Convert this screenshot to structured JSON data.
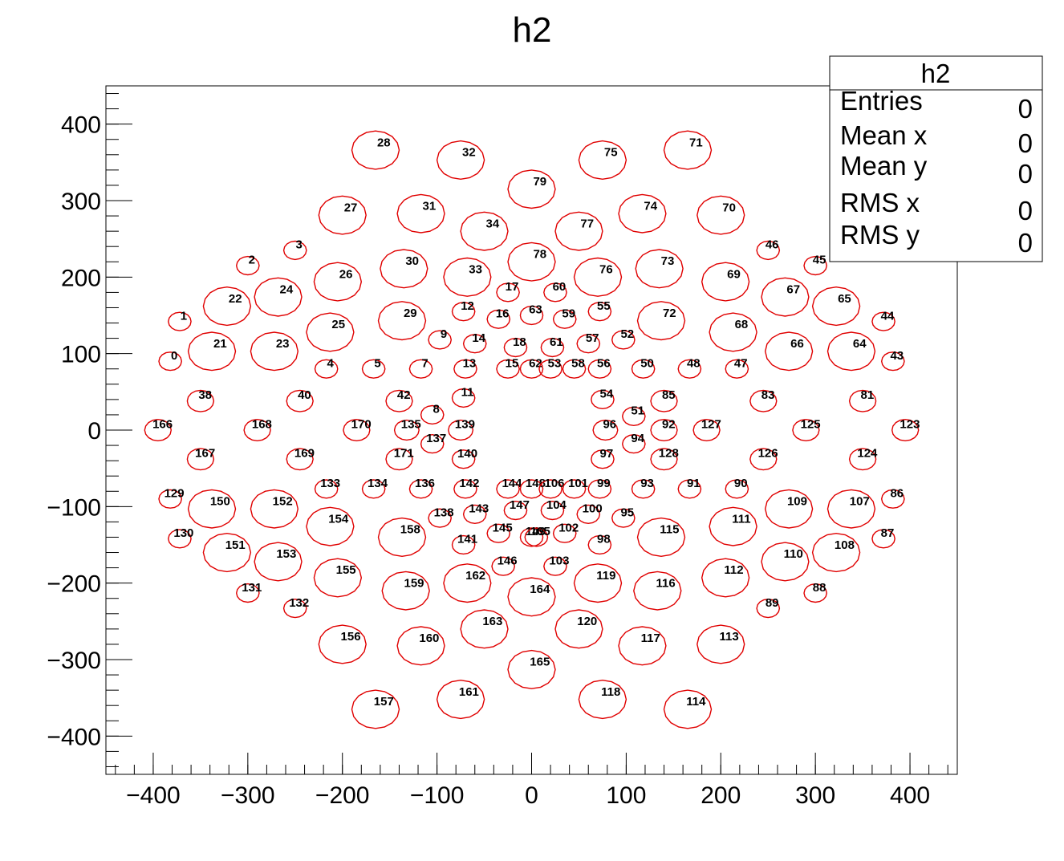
{
  "chart_data": {
    "type": "scatter",
    "title": "h2",
    "xlabel": "",
    "ylabel": "",
    "xlim": [
      -450,
      450
    ],
    "ylim": [
      -450,
      450
    ],
    "x_ticks": [
      -400,
      -300,
      -200,
      -100,
      0,
      100,
      200,
      300,
      400
    ],
    "y_ticks": [
      -400,
      -300,
      -200,
      -100,
      0,
      100,
      200,
      300,
      400
    ],
    "tick_labels": {
      "-400": "−400",
      "-300": "−300",
      "-200": "−200",
      "-100": "−100",
      "0": "0",
      "100": "100",
      "200": "200",
      "300": "300",
      "400": "400"
    },
    "bin_color": "#e00000",
    "bins": [
      {
        "id": "0",
        "x": -382,
        "y": 90,
        "r": 12
      },
      {
        "id": "1",
        "x": -372,
        "y": 142,
        "r": 12
      },
      {
        "id": "2",
        "x": -300,
        "y": 215,
        "r": 12
      },
      {
        "id": "3",
        "x": -250,
        "y": 235,
        "r": 12
      },
      {
        "id": "5",
        "x": -167,
        "y": 80,
        "r": 12
      },
      {
        "id": "4",
        "x": -217,
        "y": 80,
        "r": 12
      },
      {
        "id": "7",
        "x": -117,
        "y": 80,
        "r": 12
      },
      {
        "id": "13",
        "x": -70,
        "y": 80,
        "r": 12
      },
      {
        "id": "15",
        "x": -25,
        "y": 80,
        "r": 12
      },
      {
        "id": "62",
        "x": 0,
        "y": 80,
        "r": 12
      },
      {
        "id": "53",
        "x": 20,
        "y": 80,
        "r": 12
      },
      {
        "id": "58",
        "x": 45,
        "y": 80,
        "r": 12
      },
      {
        "id": "56",
        "x": 72,
        "y": 80,
        "r": 12
      },
      {
        "id": "50",
        "x": 118,
        "y": 80,
        "r": 12
      },
      {
        "id": "48",
        "x": 167,
        "y": 80,
        "r": 12
      },
      {
        "id": "47",
        "x": 217,
        "y": 80,
        "r": 12
      },
      {
        "id": "9",
        "x": -97,
        "y": 118,
        "r": 12
      },
      {
        "id": "14",
        "x": -60,
        "y": 113,
        "r": 12
      },
      {
        "id": "18",
        "x": -17,
        "y": 108,
        "r": 12
      },
      {
        "id": "61",
        "x": 22,
        "y": 108,
        "r": 12
      },
      {
        "id": "57",
        "x": 60,
        "y": 113,
        "r": 12
      },
      {
        "id": "52",
        "x": 97,
        "y": 118,
        "r": 12
      },
      {
        "id": "12",
        "x": -72,
        "y": 155,
        "r": 12
      },
      {
        "id": "16",
        "x": -35,
        "y": 145,
        "r": 12
      },
      {
        "id": "63",
        "x": 0,
        "y": 150,
        "r": 12
      },
      {
        "id": "59",
        "x": 35,
        "y": 145,
        "r": 12
      },
      {
        "id": "55",
        "x": 72,
        "y": 155,
        "r": 12
      },
      {
        "id": "17",
        "x": -25,
        "y": 180,
        "r": 12
      },
      {
        "id": "60",
        "x": 25,
        "y": 180,
        "r": 12
      },
      {
        "id": "46",
        "x": 250,
        "y": 235,
        "r": 12
      },
      {
        "id": "45",
        "x": 300,
        "y": 215,
        "r": 12
      },
      {
        "id": "44",
        "x": 372,
        "y": 142,
        "r": 12
      },
      {
        "id": "43",
        "x": 382,
        "y": 90,
        "r": 12
      },
      {
        "id": "21",
        "x": -338,
        "y": 103,
        "r": 25
      },
      {
        "id": "22",
        "x": -322,
        "y": 162,
        "r": 25
      },
      {
        "id": "23",
        "x": -272,
        "y": 103,
        "r": 25
      },
      {
        "id": "24",
        "x": -268,
        "y": 174,
        "r": 25
      },
      {
        "id": "25",
        "x": -213,
        "y": 128,
        "r": 25
      },
      {
        "id": "26",
        "x": -205,
        "y": 194,
        "r": 25
      },
      {
        "id": "27",
        "x": -200,
        "y": 281,
        "r": 25
      },
      {
        "id": "28",
        "x": -165,
        "y": 366,
        "r": 25
      },
      {
        "id": "29",
        "x": -137,
        "y": 143,
        "r": 25
      },
      {
        "id": "30",
        "x": -135,
        "y": 211,
        "r": 25
      },
      {
        "id": "31",
        "x": -117,
        "y": 283,
        "r": 25
      },
      {
        "id": "32",
        "x": -75,
        "y": 353,
        "r": 25
      },
      {
        "id": "33",
        "x": -68,
        "y": 200,
        "r": 25
      },
      {
        "id": "34",
        "x": -50,
        "y": 260,
        "r": 25
      },
      {
        "id": "79",
        "x": 0,
        "y": 315,
        "r": 25
      },
      {
        "id": "78",
        "x": 0,
        "y": 220,
        "r": 25
      },
      {
        "id": "77",
        "x": 50,
        "y": 260,
        "r": 25
      },
      {
        "id": "76",
        "x": 70,
        "y": 200,
        "r": 25
      },
      {
        "id": "75",
        "x": 75,
        "y": 353,
        "r": 25
      },
      {
        "id": "74",
        "x": 117,
        "y": 283,
        "r": 25
      },
      {
        "id": "73",
        "x": 135,
        "y": 211,
        "r": 25
      },
      {
        "id": "72",
        "x": 137,
        "y": 143,
        "r": 25
      },
      {
        "id": "71",
        "x": 165,
        "y": 366,
        "r": 25
      },
      {
        "id": "70",
        "x": 200,
        "y": 281,
        "r": 25
      },
      {
        "id": "69",
        "x": 205,
        "y": 194,
        "r": 25
      },
      {
        "id": "68",
        "x": 213,
        "y": 128,
        "r": 25
      },
      {
        "id": "67",
        "x": 268,
        "y": 174,
        "r": 25
      },
      {
        "id": "66",
        "x": 272,
        "y": 103,
        "r": 25
      },
      {
        "id": "65",
        "x": 322,
        "y": 162,
        "r": 25
      },
      {
        "id": "64",
        "x": 338,
        "y": 103,
        "r": 25
      },
      {
        "id": "38",
        "x": -350,
        "y": 38,
        "r": 14
      },
      {
        "id": "40",
        "x": -245,
        "y": 38,
        "r": 14
      },
      {
        "id": "42",
        "x": -140,
        "y": 38,
        "r": 14
      },
      {
        "id": "11",
        "x": -72,
        "y": 42,
        "r": 12
      },
      {
        "id": "8",
        "x": -105,
        "y": 20,
        "r": 12
      },
      {
        "id": "54",
        "x": 75,
        "y": 40,
        "r": 12
      },
      {
        "id": "51",
        "x": 108,
        "y": 18,
        "r": 12
      },
      {
        "id": "85",
        "x": 140,
        "y": 38,
        "r": 14
      },
      {
        "id": "83",
        "x": 245,
        "y": 38,
        "r": 14
      },
      {
        "id": "81",
        "x": 350,
        "y": 38,
        "r": 14
      },
      {
        "id": "166",
        "x": -395,
        "y": 0,
        "r": 14
      },
      {
        "id": "168",
        "x": -290,
        "y": 0,
        "r": 14
      },
      {
        "id": "170",
        "x": -185,
        "y": 0,
        "r": 14
      },
      {
        "id": "135",
        "x": -132,
        "y": 0,
        "r": 13
      },
      {
        "id": "139",
        "x": -75,
        "y": 0,
        "r": 13
      },
      {
        "id": "96",
        "x": 78,
        "y": 0,
        "r": 13
      },
      {
        "id": "92",
        "x": 140,
        "y": 0,
        "r": 14
      },
      {
        "id": "127",
        "x": 185,
        "y": 0,
        "r": 14
      },
      {
        "id": "125",
        "x": 290,
        "y": 0,
        "r": 14
      },
      {
        "id": "123",
        "x": 395,
        "y": 0,
        "r": 14
      },
      {
        "id": "137",
        "x": -105,
        "y": -18,
        "r": 12
      },
      {
        "id": "94",
        "x": 108,
        "y": -18,
        "r": 12
      },
      {
        "id": "167",
        "x": -350,
        "y": -38,
        "r": 14
      },
      {
        "id": "169",
        "x": -245,
        "y": -38,
        "r": 14
      },
      {
        "id": "171",
        "x": -140,
        "y": -38,
        "r": 14
      },
      {
        "id": "140",
        "x": -72,
        "y": -38,
        "r": 12
      },
      {
        "id": "97",
        "x": 75,
        "y": -38,
        "r": 12
      },
      {
        "id": "128",
        "x": 140,
        "y": -38,
        "r": 14
      },
      {
        "id": "126",
        "x": 245,
        "y": -38,
        "r": 14
      },
      {
        "id": "124",
        "x": 350,
        "y": -38,
        "r": 14
      },
      {
        "id": "133",
        "x": -217,
        "y": -77,
        "r": 12
      },
      {
        "id": "134",
        "x": -167,
        "y": -77,
        "r": 12
      },
      {
        "id": "136",
        "x": -117,
        "y": -77,
        "r": 12
      },
      {
        "id": "142",
        "x": -70,
        "y": -77,
        "r": 12
      },
      {
        "id": "144",
        "x": -25,
        "y": -77,
        "r": 12
      },
      {
        "id": "148",
        "x": 0,
        "y": -77,
        "r": 12
      },
      {
        "id": "106",
        "x": 20,
        "y": -77,
        "r": 12
      },
      {
        "id": "101",
        "x": 45,
        "y": -77,
        "r": 12
      },
      {
        "id": "99",
        "x": 72,
        "y": -77,
        "r": 12
      },
      {
        "id": "93",
        "x": 118,
        "y": -77,
        "r": 12
      },
      {
        "id": "91",
        "x": 167,
        "y": -77,
        "r": 12
      },
      {
        "id": "90",
        "x": 217,
        "y": -77,
        "r": 12
      },
      {
        "id": "129",
        "x": -382,
        "y": -90,
        "r": 12
      },
      {
        "id": "130",
        "x": -372,
        "y": -142,
        "r": 12
      },
      {
        "id": "86",
        "x": 382,
        "y": -90,
        "r": 12
      },
      {
        "id": "87",
        "x": 372,
        "y": -142,
        "r": 12
      },
      {
        "id": "138",
        "x": -97,
        "y": -115,
        "r": 12
      },
      {
        "id": "143",
        "x": -60,
        "y": -110,
        "r": 12
      },
      {
        "id": "147",
        "x": -17,
        "y": -105,
        "r": 12
      },
      {
        "id": "104",
        "x": 22,
        "y": -105,
        "r": 12
      },
      {
        "id": "100",
        "x": 60,
        "y": -110,
        "r": 12
      },
      {
        "id": "95",
        "x": 97,
        "y": -115,
        "r": 12
      },
      {
        "id": "145",
        "x": -35,
        "y": -135,
        "r": 12
      },
      {
        "id": "149",
        "x": 0,
        "y": -140,
        "r": 12
      },
      {
        "id": "105",
        "x": 5,
        "y": -140,
        "r": 12
      },
      {
        "id": "102",
        "x": 35,
        "y": -135,
        "r": 12
      },
      {
        "id": "141",
        "x": -72,
        "y": -150,
        "r": 12
      },
      {
        "id": "98",
        "x": 72,
        "y": -150,
        "r": 12
      },
      {
        "id": "146",
        "x": -30,
        "y": -178,
        "r": 12
      },
      {
        "id": "103",
        "x": 25,
        "y": -178,
        "r": 12
      },
      {
        "id": "131",
        "x": -300,
        "y": -213,
        "r": 12
      },
      {
        "id": "132",
        "x": -250,
        "y": -233,
        "r": 12
      },
      {
        "id": "89",
        "x": 250,
        "y": -233,
        "r": 12
      },
      {
        "id": "88",
        "x": 300,
        "y": -213,
        "r": 12
      },
      {
        "id": "150",
        "x": -338,
        "y": -103,
        "r": 25
      },
      {
        "id": "151",
        "x": -322,
        "y": -160,
        "r": 25
      },
      {
        "id": "152",
        "x": -272,
        "y": -103,
        "r": 25
      },
      {
        "id": "153",
        "x": -268,
        "y": -172,
        "r": 25
      },
      {
        "id": "154",
        "x": -213,
        "y": -126,
        "r": 25
      },
      {
        "id": "155",
        "x": -205,
        "y": -193,
        "r": 25
      },
      {
        "id": "156",
        "x": -200,
        "y": -280,
        "r": 25
      },
      {
        "id": "157",
        "x": -165,
        "y": -365,
        "r": 25
      },
      {
        "id": "158",
        "x": -137,
        "y": -140,
        "r": 25
      },
      {
        "id": "159",
        "x": -133,
        "y": -210,
        "r": 25
      },
      {
        "id": "160",
        "x": -117,
        "y": -282,
        "r": 25
      },
      {
        "id": "161",
        "x": -75,
        "y": -352,
        "r": 25
      },
      {
        "id": "162",
        "x": -68,
        "y": -200,
        "r": 25
      },
      {
        "id": "163",
        "x": -50,
        "y": -260,
        "r": 25
      },
      {
        "id": "164",
        "x": 0,
        "y": -218,
        "r": 25
      },
      {
        "id": "165",
        "x": 0,
        "y": -313,
        "r": 25
      },
      {
        "id": "120",
        "x": 50,
        "y": -260,
        "r": 25
      },
      {
        "id": "119",
        "x": 70,
        "y": -200,
        "r": 25
      },
      {
        "id": "118",
        "x": 75,
        "y": -352,
        "r": 25
      },
      {
        "id": "117",
        "x": 117,
        "y": -282,
        "r": 25
      },
      {
        "id": "116",
        "x": 133,
        "y": -210,
        "r": 25
      },
      {
        "id": "115",
        "x": 137,
        "y": -140,
        "r": 25
      },
      {
        "id": "114",
        "x": 165,
        "y": -365,
        "r": 25
      },
      {
        "id": "113",
        "x": 200,
        "y": -280,
        "r": 25
      },
      {
        "id": "112",
        "x": 205,
        "y": -193,
        "r": 25
      },
      {
        "id": "111",
        "x": 213,
        "y": -126,
        "r": 25
      },
      {
        "id": "110",
        "x": 268,
        "y": -172,
        "r": 25
      },
      {
        "id": "109",
        "x": 272,
        "y": -103,
        "r": 25
      },
      {
        "id": "108",
        "x": 322,
        "y": -160,
        "r": 25
      },
      {
        "id": "107",
        "x": 338,
        "y": -103,
        "r": 25
      }
    ]
  },
  "stats": {
    "title": "h2",
    "rows": [
      {
        "label": "Entries",
        "value": "0"
      },
      {
        "label": "Mean x",
        "value": "0"
      },
      {
        "label": "Mean y",
        "value": "0"
      },
      {
        "label": "RMS x",
        "value": "0"
      },
      {
        "label": "RMS y",
        "value": "0"
      }
    ]
  }
}
